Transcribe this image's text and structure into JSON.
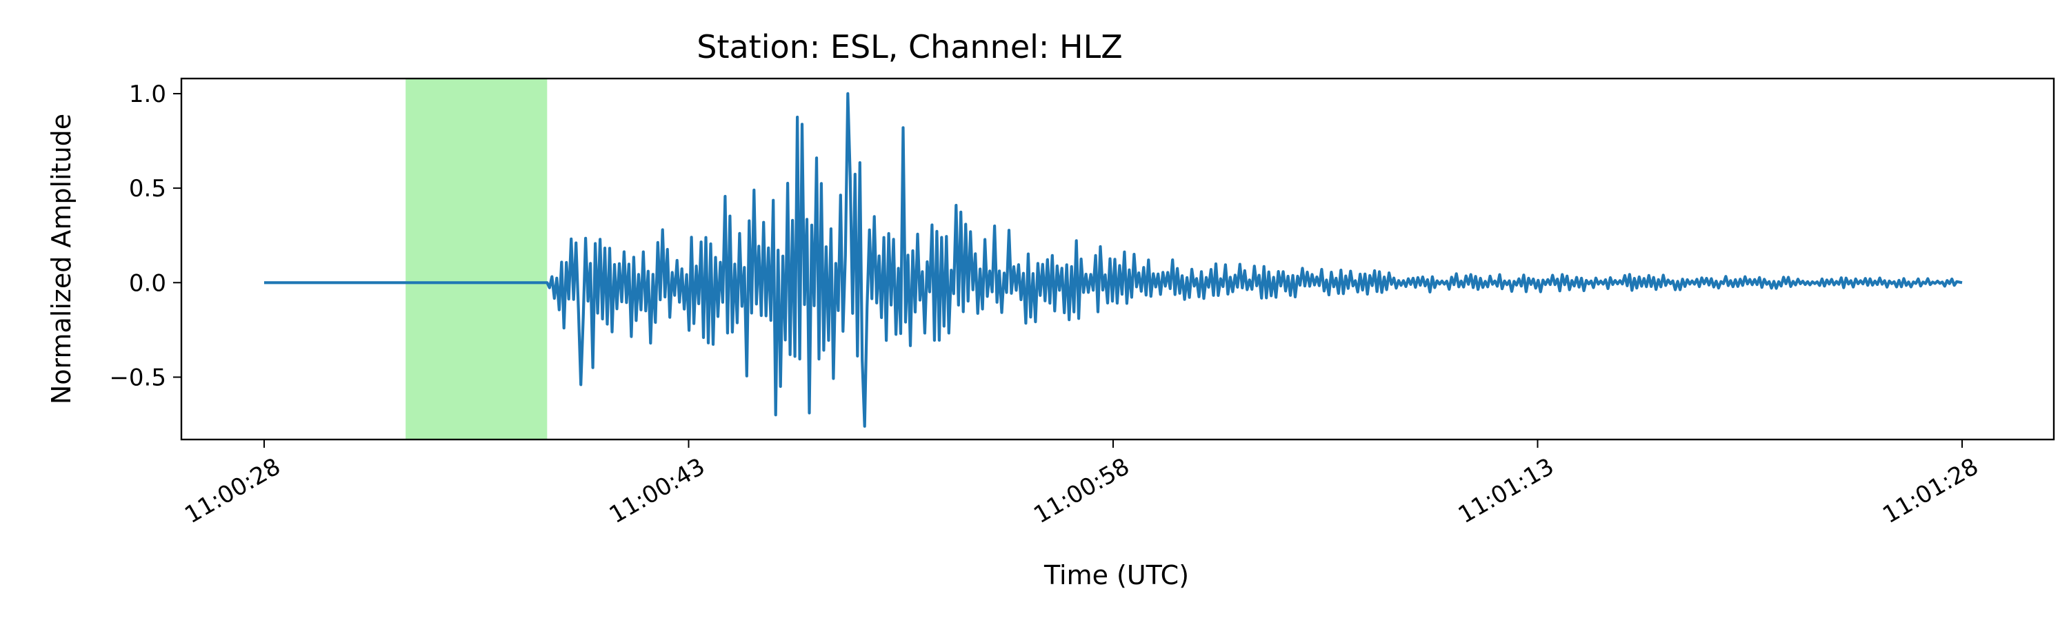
{
  "chart_data": {
    "type": "line",
    "title": "Station: ESL, Channel: HLZ",
    "xlabel": "Time (UTC)",
    "ylabel": "Normalized Amplitude",
    "x_axis": {
      "kind": "time",
      "start": "11:00:28",
      "end": "11:01:28",
      "ticks": [
        "11:00:28",
        "11:00:43",
        "11:00:58",
        "11:01:13",
        "11:01:28"
      ],
      "tick_rotation_deg": 30
    },
    "y_axis": {
      "ylim": [
        -0.83,
        1.08
      ],
      "ticks": [
        1.0,
        0.5,
        0.0,
        -0.5
      ],
      "tick_labels": [
        "1.0",
        "0.5",
        "0.0",
        "−0.5"
      ]
    },
    "highlight_window": {
      "start": "11:00:33",
      "end": "11:00:38",
      "color": "#b2f2b2"
    },
    "series": [
      {
        "color": "#1f77b4",
        "envelope": {
          "times": [
            "11:00:38",
            "11:00:39",
            "11:00:40",
            "11:00:41",
            "11:00:42",
            "11:00:43",
            "11:00:44",
            "11:00:45",
            "11:00:46",
            "11:00:47",
            "11:00:48",
            "11:00:49",
            "11:00:50",
            "11:00:51",
            "11:00:53",
            "11:00:56",
            "11:00:58",
            "11:01:01",
            "11:01:04",
            "11:01:08",
            "11:01:13",
            "11:01:18",
            "11:01:23",
            "11:01:28"
          ],
          "max": [
            0.0,
            0.32,
            0.3,
            0.28,
            0.28,
            0.3,
            0.46,
            0.5,
            0.66,
            1.0,
            0.6,
            0.82,
            0.46,
            0.4,
            0.42,
            0.28,
            0.18,
            0.12,
            0.09,
            0.06,
            0.05,
            0.04,
            0.03,
            0.02
          ],
          "min": [
            0.0,
            -0.54,
            -0.42,
            -0.38,
            -0.36,
            -0.4,
            -0.56,
            -0.7,
            -0.76,
            -0.74,
            -0.58,
            -0.6,
            -0.4,
            -0.34,
            -0.28,
            -0.22,
            -0.16,
            -0.1,
            -0.08,
            -0.06,
            -0.05,
            -0.04,
            -0.03,
            -0.02
          ]
        },
        "notable_points": [
          {
            "t": "11:00:48.6",
            "y": 1.0
          },
          {
            "t": "11:00:50.6",
            "y": 0.82
          },
          {
            "t": "11:00:47.5",
            "y": 0.66
          },
          {
            "t": "11:00:49.2",
            "y": -0.76
          },
          {
            "t": "11:00:46.1",
            "y": -0.7
          },
          {
            "t": "11:00:39.2",
            "y": -0.54
          }
        ]
      }
    ],
    "grid": false,
    "legend": "none"
  }
}
